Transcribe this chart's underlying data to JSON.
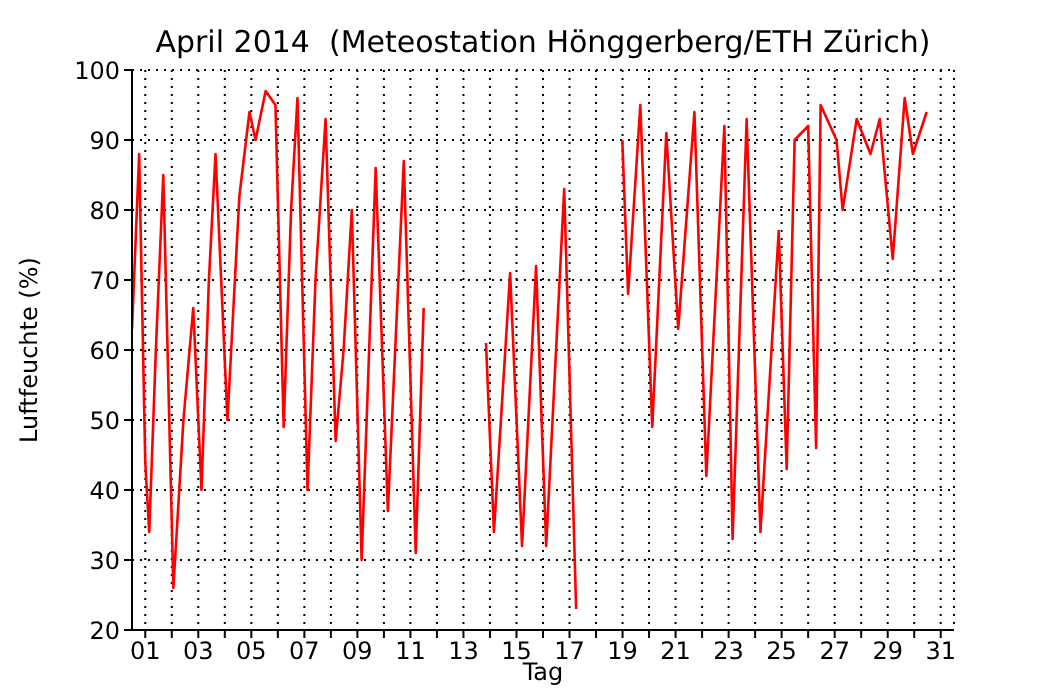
{
  "chart_data": {
    "type": "line",
    "title": "April 2014  (Meteostation Hönggerberg/ETH Zürich)",
    "xlabel": "Tag",
    "ylabel": "Luftfeuchte (%)",
    "series": [
      {
        "color": "#ff0000",
        "x": [
          0.5,
          0.77,
          1.0,
          1.15,
          1.4,
          1.68,
          2.06,
          2.44,
          2.81,
          3.12,
          3.4,
          3.65,
          4.1,
          4.55,
          4.93,
          5.16,
          5.54,
          5.91,
          6.22,
          6.5,
          6.74,
          7.12,
          7.42,
          7.8,
          8.18,
          8.48,
          8.79,
          9.16,
          9.69,
          10.15,
          10.75,
          11.2,
          11.5,
          12.5,
          13.85,
          14.15,
          14.76,
          15.21,
          15.74,
          16.12,
          16.8,
          17.25,
          18,
          18.99,
          19.21,
          19.67,
          20.12,
          20.65,
          21.1,
          21.71,
          22.16,
          22.84,
          23.15,
          23.68,
          24.2,
          24.89,
          25.19,
          25.49,
          26.0,
          26.3,
          26.47,
          27.07,
          27.3,
          27.83,
          28.35,
          28.7,
          29.19,
          29.64,
          29.95,
          30.47
        ],
        "values": [
          63,
          88,
          44,
          34,
          60,
          85,
          26,
          50,
          66,
          40,
          70,
          88,
          50,
          82,
          94,
          90,
          97,
          95,
          49,
          80,
          96,
          40,
          70,
          93,
          47,
          60,
          80,
          30,
          86,
          37,
          87,
          31,
          66,
          null,
          61,
          34,
          71,
          32,
          72,
          32,
          83,
          23,
          null,
          90,
          68,
          95,
          49,
          91,
          63,
          94,
          42,
          92,
          33,
          93,
          34,
          77,
          43,
          90,
          92,
          46,
          95,
          90,
          80,
          93,
          88,
          93,
          73,
          96,
          88,
          94
        ]
      }
    ],
    "xlim": [
      0.5,
      31.5
    ],
    "xticks": [
      {
        "value": 1,
        "label": "01"
      },
      {
        "value": 2,
        "label": null
      },
      {
        "value": 3,
        "label": "03"
      },
      {
        "value": 4,
        "label": null
      },
      {
        "value": 5,
        "label": "05"
      },
      {
        "value": 6,
        "label": null
      },
      {
        "value": 7,
        "label": "07"
      },
      {
        "value": 8,
        "label": null
      },
      {
        "value": 9,
        "label": "09"
      },
      {
        "value": 10,
        "label": null
      },
      {
        "value": 11,
        "label": "11"
      },
      {
        "value": 12,
        "label": null
      },
      {
        "value": 13,
        "label": "13"
      },
      {
        "value": 14,
        "label": null
      },
      {
        "value": 15,
        "label": "15"
      },
      {
        "value": 16,
        "label": null
      },
      {
        "value": 17,
        "label": "17"
      },
      {
        "value": 18,
        "label": null
      },
      {
        "value": 19,
        "label": "19"
      },
      {
        "value": 20,
        "label": null
      },
      {
        "value": 21,
        "label": "21"
      },
      {
        "value": 22,
        "label": null
      },
      {
        "value": 23,
        "label": "23"
      },
      {
        "value": 24,
        "label": null
      },
      {
        "value": 25,
        "label": "25"
      },
      {
        "value": 26,
        "label": null
      },
      {
        "value": 27,
        "label": "27"
      },
      {
        "value": 28,
        "label": null
      },
      {
        "value": 29,
        "label": "29"
      },
      {
        "value": 30,
        "label": null
      },
      {
        "value": 31,
        "label": "31"
      }
    ],
    "ylim": [
      20,
      100
    ],
    "yticks": [
      20,
      30,
      40,
      50,
      60,
      70,
      80,
      90,
      100
    ],
    "grid": true,
    "marker": "none",
    "line_style": "solid"
  }
}
